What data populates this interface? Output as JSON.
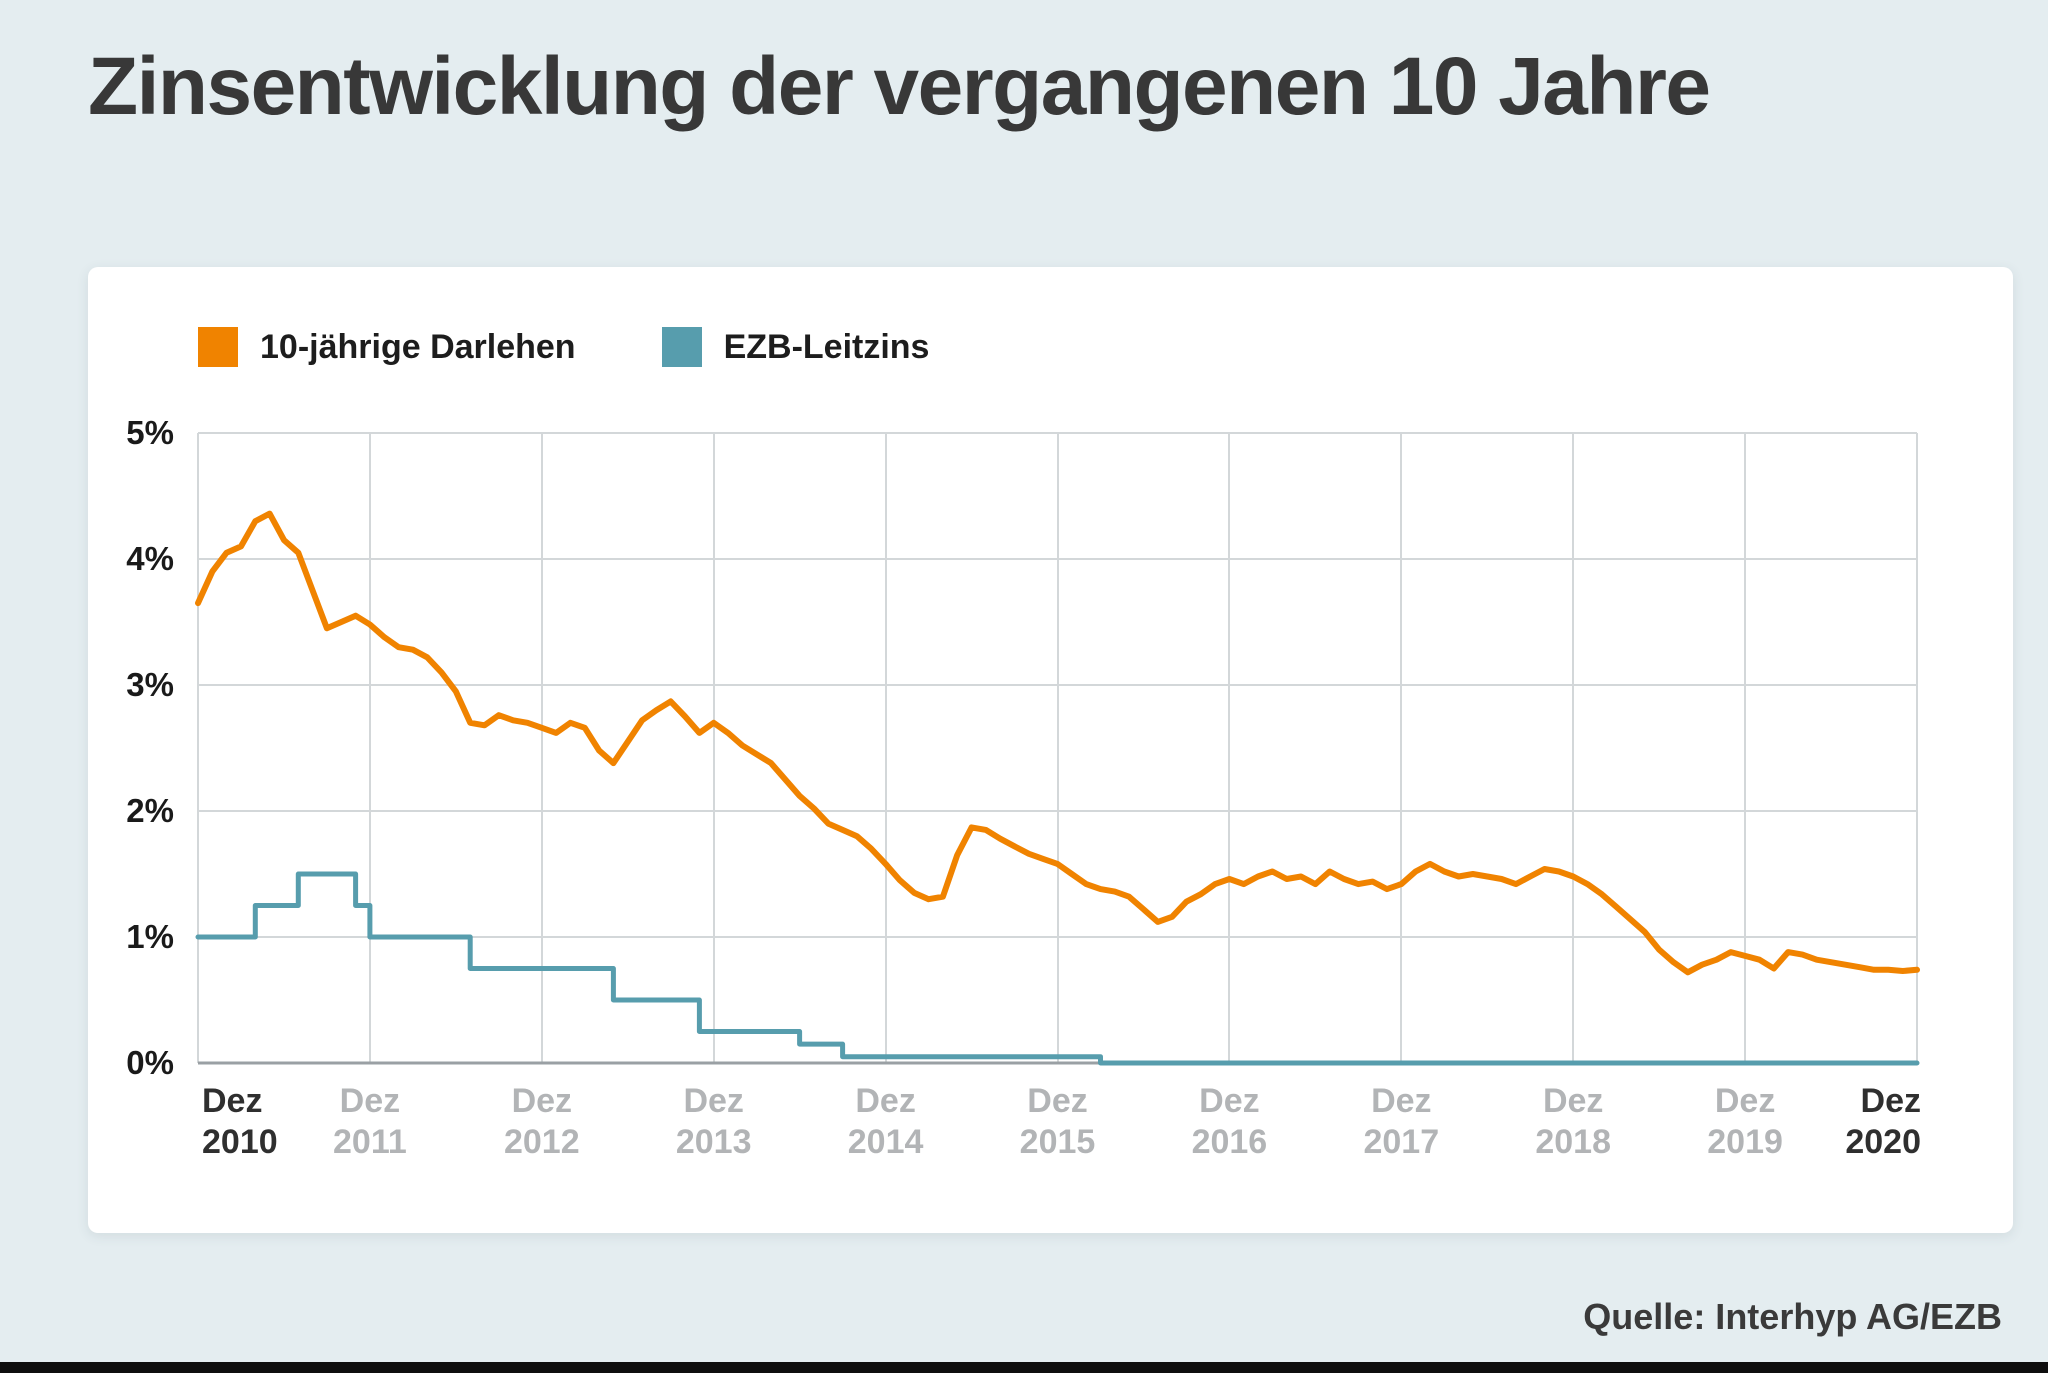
{
  "page": {
    "title": "Zinsentwicklung der vergangenen 10 Jahre",
    "source": "Quelle: Interhyp AG/EZB",
    "background_color": "#e4edf0"
  },
  "chart_data": {
    "type": "line",
    "title": "Zinsentwicklung der vergangenen 10 Jahre",
    "grid": true,
    "legend_position": "top-left",
    "ylim": [
      0,
      5
    ],
    "x_months": 120,
    "y_ticks": [
      "5%",
      "4%",
      "3%",
      "2%",
      "1%",
      "0%"
    ],
    "x_ticks": [
      {
        "line1": "Dez",
        "line2": "2010",
        "strong": true
      },
      {
        "line1": "Dez",
        "line2": "2011",
        "strong": false
      },
      {
        "line1": "Dez",
        "line2": "2012",
        "strong": false
      },
      {
        "line1": "Dez",
        "line2": "2013",
        "strong": false
      },
      {
        "line1": "Dez",
        "line2": "2014",
        "strong": false
      },
      {
        "line1": "Dez",
        "line2": "2015",
        "strong": false
      },
      {
        "line1": "Dez",
        "line2": "2016",
        "strong": false
      },
      {
        "line1": "Dez",
        "line2": "2017",
        "strong": false
      },
      {
        "line1": "Dez",
        "line2": "2018",
        "strong": false
      },
      {
        "line1": "Dez",
        "line2": "2019",
        "strong": false
      },
      {
        "line1": "Dez",
        "line2": "2020",
        "strong": true
      }
    ],
    "colors": {
      "grid": "#d3d7d9",
      "axis": "#9aa0a4",
      "tick_strong": "#2f2f2f",
      "tick_weak": "#b2b4b6"
    },
    "series": [
      {
        "name": "10-jährige Darlehen",
        "color": "#f08300",
        "style": "line",
        "interval": "monthly, Dez 2010 – Dez 2020",
        "unit": "%",
        "monthly_values": [
          3.65,
          3.9,
          4.05,
          4.1,
          4.3,
          4.36,
          4.15,
          4.05,
          3.75,
          3.45,
          3.5,
          3.55,
          3.48,
          3.38,
          3.3,
          3.28,
          3.22,
          3.1,
          2.95,
          2.7,
          2.68,
          2.76,
          2.72,
          2.7,
          2.66,
          2.62,
          2.7,
          2.66,
          2.48,
          2.38,
          2.55,
          2.72,
          2.8,
          2.87,
          2.75,
          2.62,
          2.7,
          2.62,
          2.52,
          2.45,
          2.38,
          2.25,
          2.12,
          2.02,
          1.9,
          1.85,
          1.8,
          1.7,
          1.58,
          1.45,
          1.35,
          1.3,
          1.32,
          1.65,
          1.87,
          1.85,
          1.78,
          1.72,
          1.66,
          1.62,
          1.58,
          1.5,
          1.42,
          1.38,
          1.36,
          1.32,
          1.22,
          1.12,
          1.16,
          1.28,
          1.34,
          1.42,
          1.46,
          1.42,
          1.48,
          1.52,
          1.46,
          1.48,
          1.42,
          1.52,
          1.46,
          1.42,
          1.44,
          1.38,
          1.42,
          1.52,
          1.58,
          1.52,
          1.48,
          1.5,
          1.48,
          1.46,
          1.42,
          1.48,
          1.54,
          1.52,
          1.48,
          1.42,
          1.34,
          1.24,
          1.14,
          1.04,
          0.9,
          0.8,
          0.72,
          0.78,
          0.82,
          0.88,
          0.85,
          0.82,
          0.75,
          0.88,
          0.86,
          0.82,
          0.8,
          0.78,
          0.76,
          0.74,
          0.74,
          0.73,
          0.74
        ]
      },
      {
        "name": "EZB-Leitzins",
        "color": "#579dad",
        "style": "step",
        "unit": "%",
        "steps": [
          [
            0,
            1.0
          ],
          [
            4,
            1.25
          ],
          [
            7,
            1.5
          ],
          [
            11,
            1.25
          ],
          [
            12,
            1.0
          ],
          [
            19,
            0.75
          ],
          [
            29,
            0.5
          ],
          [
            35,
            0.25
          ],
          [
            42,
            0.15
          ],
          [
            45,
            0.05
          ],
          [
            63,
            0.0
          ]
        ]
      }
    ]
  }
}
